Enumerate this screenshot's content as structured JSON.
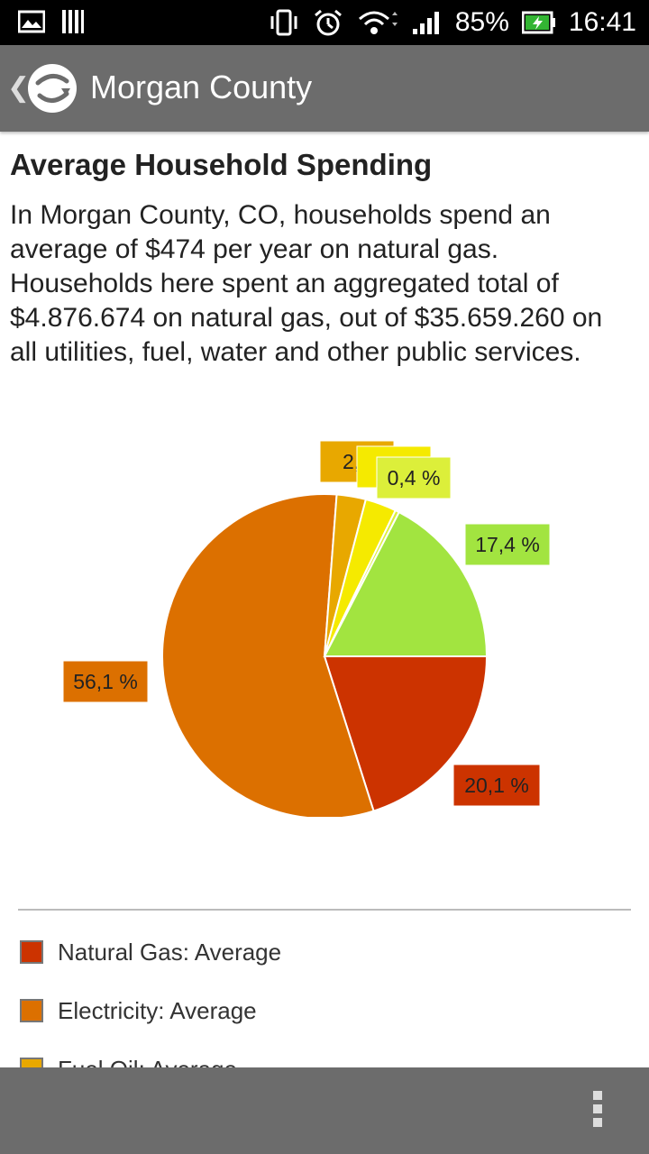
{
  "status_bar": {
    "battery": "85%",
    "time": "16:41",
    "icons": [
      "gallery-icon",
      "barcode-icon",
      "vibrate-icon",
      "alarm-icon",
      "wifi-icon",
      "signal-icon",
      "battery-icon"
    ]
  },
  "app_bar": {
    "title": "Morgan County",
    "icons": [
      "back-chevron-icon",
      "app-logo-icon"
    ]
  },
  "main": {
    "heading": "Average Household Spending",
    "description": "In Morgan County, CO, households spend an average of $474 per year on natural gas. Households here spent an aggregated total of $4.876.674 on natural gas, out of $35.659.260 on all utilities, fuel, water and other public services."
  },
  "chart_data": {
    "type": "pie",
    "slices": [
      {
        "name": "Natural Gas: Average",
        "value": 20.1,
        "label": "20,1 %",
        "color": "#cc3300"
      },
      {
        "name": "Electricity: Average",
        "value": 56.1,
        "label": "56,1 %",
        "color": "#dc7000"
      },
      {
        "name": "Fuel Oil: Average",
        "value": 2.9,
        "label": "2,9",
        "color": "#e8a800"
      },
      {
        "name": "",
        "value": 3.1,
        "label": "3",
        "color": "#f5ea00"
      },
      {
        "name": "",
        "value": 0.4,
        "label": "0,4 %",
        "color": "#dcef3a"
      },
      {
        "name": "",
        "value": 17.4,
        "label": "17,4 %",
        "color": "#a2e440"
      }
    ]
  },
  "legend": {
    "items": [
      {
        "label": "Natural Gas: Average",
        "color": "#cc3300"
      },
      {
        "label": "Electricity: Average",
        "color": "#dc7000"
      },
      {
        "label": "Fuel Oil: Average",
        "color": "#e8a800"
      }
    ]
  },
  "bottom_bar": {
    "icons": [
      "overflow-menu-icon"
    ]
  }
}
